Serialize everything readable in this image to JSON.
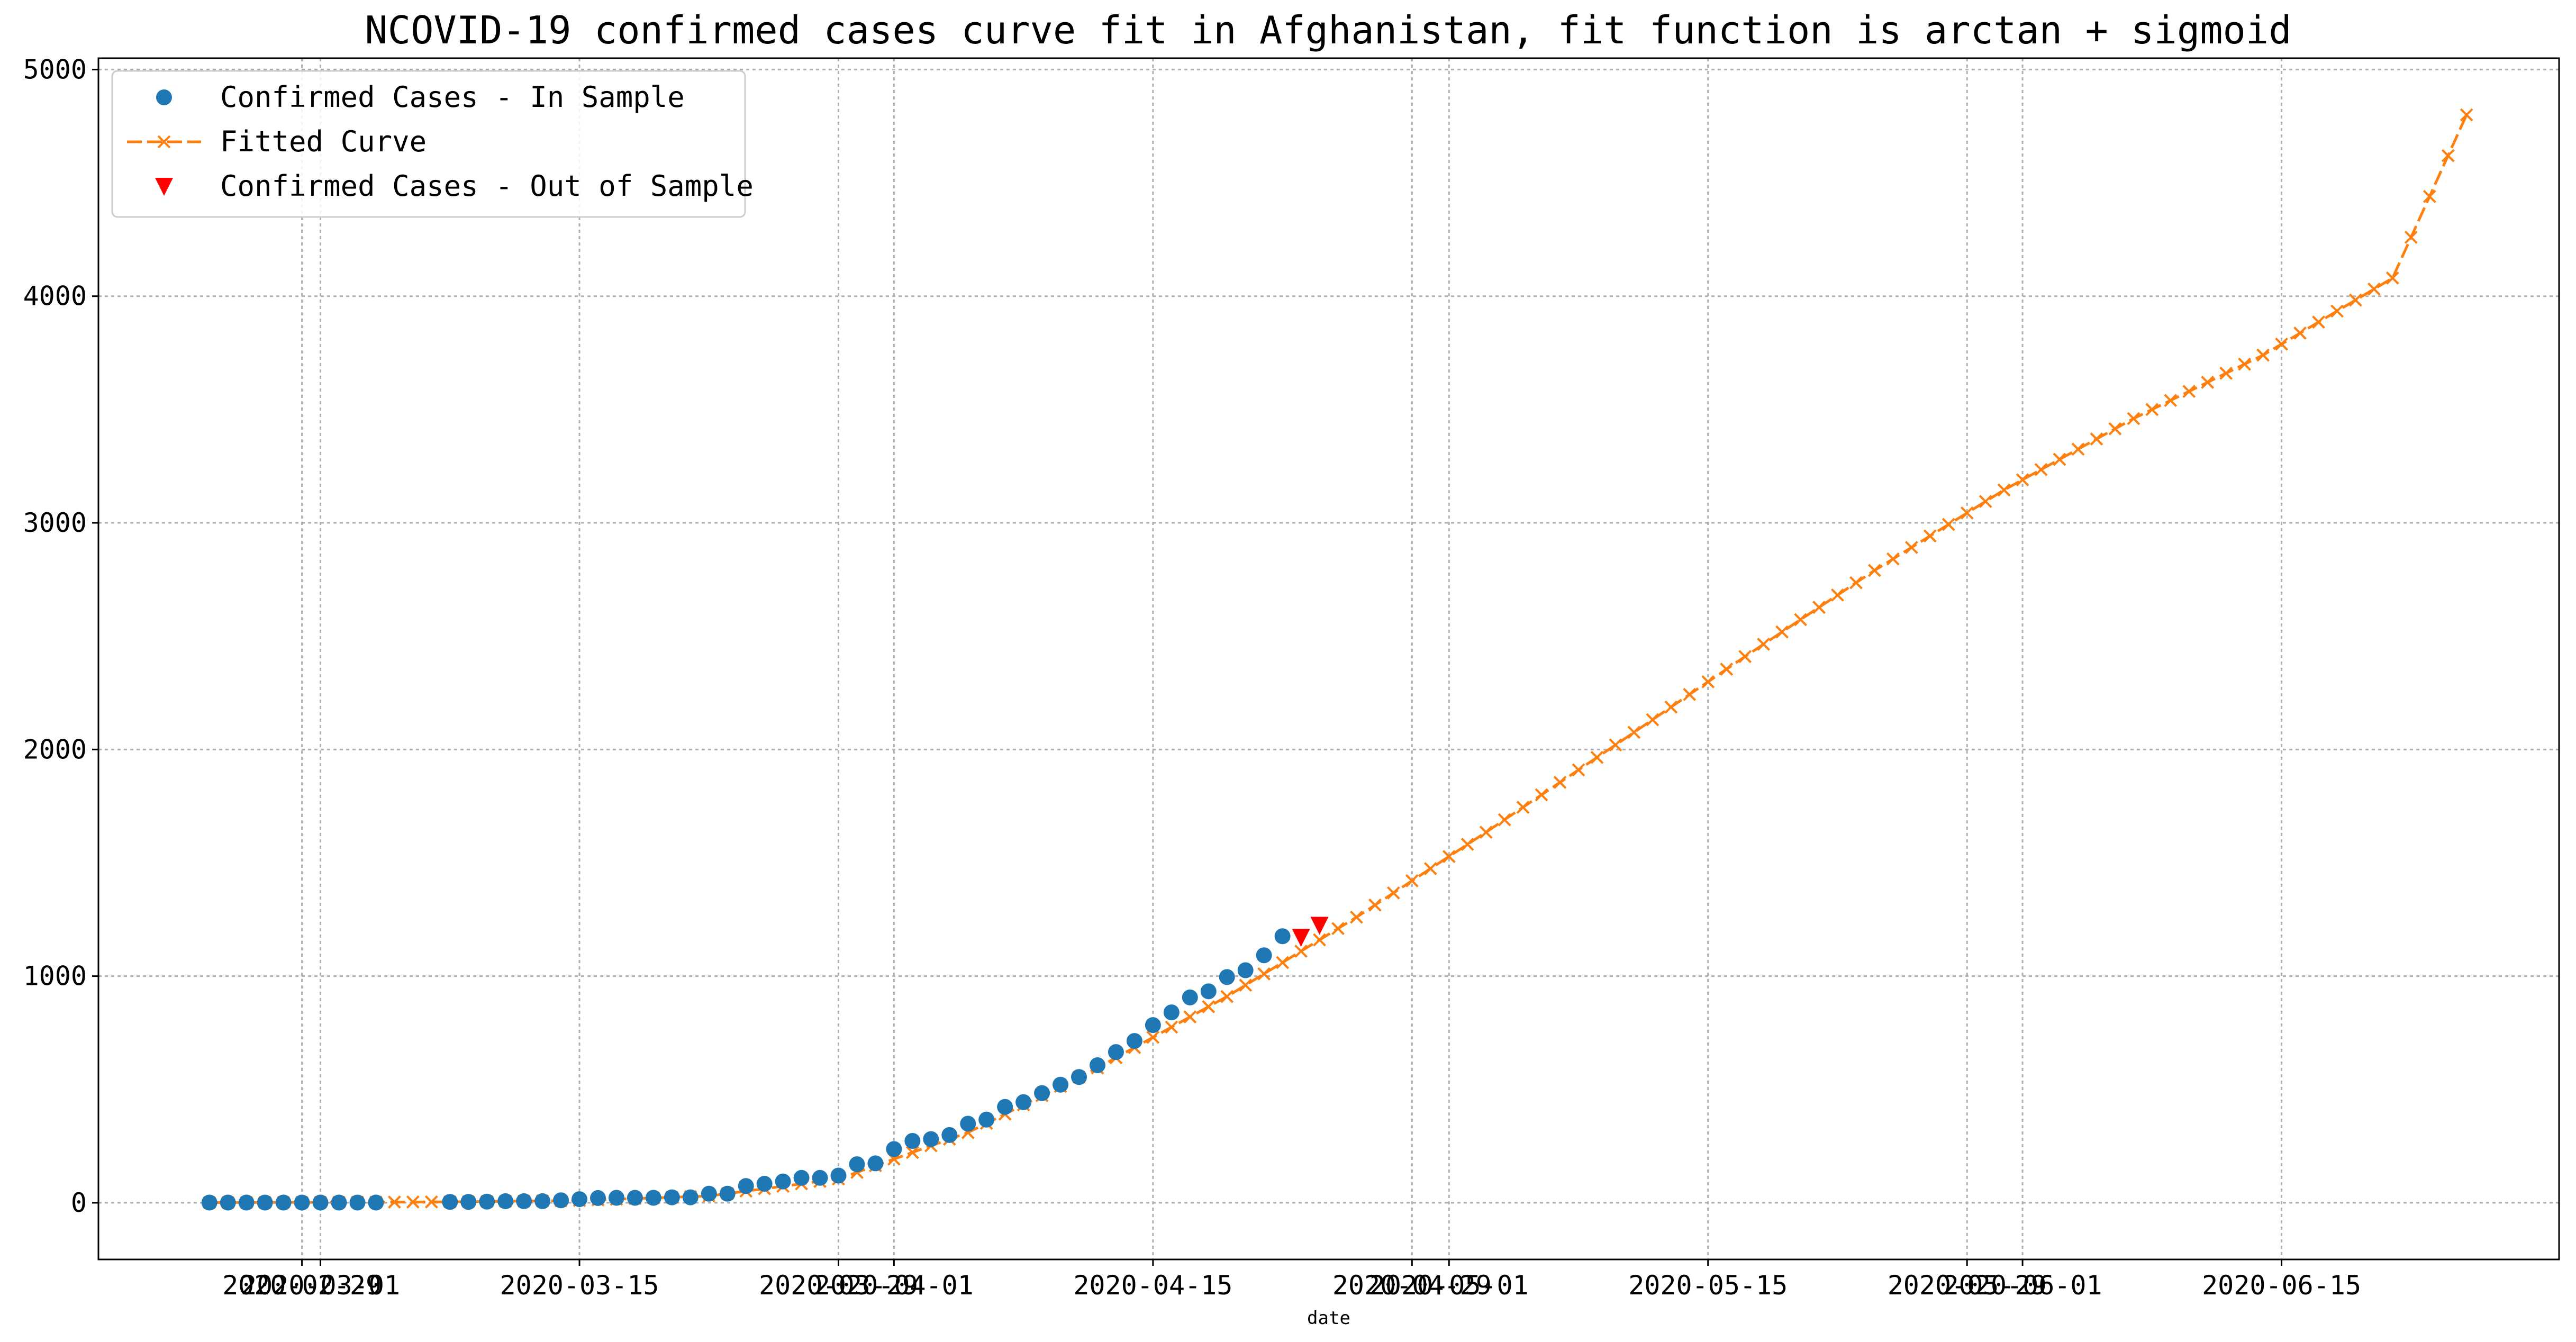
{
  "chart_data": {
    "type": "line",
    "title": "NCOVID-19 confirmed cases curve fit in Afghanistan, fit function is arctan + sigmoid",
    "xlabel": "date",
    "ylabel": "",
    "xlim": [
      "2020-02-18",
      "2020-06-30"
    ],
    "ylim": [
      -250,
      5050
    ],
    "grid": true,
    "legend_position": "upper-left",
    "x_ticks": [
      {
        "date": "2020-02-29",
        "label": "2020-02-29"
      },
      {
        "date": "2020-03-01",
        "label": "2020-03-01"
      },
      {
        "date": "2020-03-15",
        "label": "2020-03-15"
      },
      {
        "date": "2020-03-29",
        "label": "2020-03-29"
      },
      {
        "date": "2020-04-01",
        "label": "2020-04-01"
      },
      {
        "date": "2020-04-15",
        "label": "2020-04-15"
      },
      {
        "date": "2020-04-29",
        "label": "2020-04-29"
      },
      {
        "date": "2020-05-01",
        "label": "2020-05-01"
      },
      {
        "date": "2020-05-15",
        "label": "2020-05-15"
      },
      {
        "date": "2020-05-29",
        "label": "2020-05-29"
      },
      {
        "date": "2020-06-01",
        "label": "2020-06-01"
      },
      {
        "date": "2020-06-15",
        "label": "2020-06-15"
      }
    ],
    "y_ticks": [
      0,
      1000,
      2000,
      3000,
      4000,
      5000
    ],
    "series": [
      {
        "name": "Confirmed Cases - In Sample",
        "marker": "circle",
        "color": "#1f77b4",
        "x": [
          "2020-02-24",
          "2020-02-25",
          "2020-02-26",
          "2020-02-27",
          "2020-02-28",
          "2020-02-29",
          "2020-03-01",
          "2020-03-02",
          "2020-03-03",
          "2020-03-04",
          "2020-03-08",
          "2020-03-09",
          "2020-03-10",
          "2020-03-11",
          "2020-03-12",
          "2020-03-13",
          "2020-03-14",
          "2020-03-15",
          "2020-03-16",
          "2020-03-17",
          "2020-03-18",
          "2020-03-19",
          "2020-03-20",
          "2020-03-21",
          "2020-03-22",
          "2020-03-23",
          "2020-03-24",
          "2020-03-25",
          "2020-03-26",
          "2020-03-27",
          "2020-03-28",
          "2020-03-29",
          "2020-03-30",
          "2020-03-31",
          "2020-04-01",
          "2020-04-02",
          "2020-04-03",
          "2020-04-04",
          "2020-04-05",
          "2020-04-06",
          "2020-04-07",
          "2020-04-08",
          "2020-04-09",
          "2020-04-10",
          "2020-04-11",
          "2020-04-12",
          "2020-04-13",
          "2020-04-14",
          "2020-04-15",
          "2020-04-16",
          "2020-04-17",
          "2020-04-18",
          "2020-04-19",
          "2020-04-20",
          "2020-04-21",
          "2020-04-22"
        ],
        "values": [
          1,
          1,
          1,
          1,
          1,
          1,
          1,
          1,
          1,
          1,
          4,
          4,
          5,
          7,
          7,
          7,
          11,
          16,
          21,
          22,
          22,
          22,
          24,
          24,
          40,
          40,
          74,
          84,
          94,
          110,
          110,
          120,
          170,
          174,
          237,
          273,
          281,
          299,
          349,
          367,
          423,
          444,
          484,
          521,
          555,
          607,
          665,
          714,
          784,
          840,
          906,
          933,
          996,
          1026,
          1092,
          1176
        ]
      },
      {
        "name": "Fitted Curve",
        "marker": "x",
        "line": "dashed",
        "color": "#ff7f0e",
        "x": [
          "2020-02-24",
          "2020-03-01",
          "2020-03-08",
          "2020-03-15",
          "2020-03-22",
          "2020-03-29",
          "2020-04-05",
          "2020-04-12",
          "2020-04-19",
          "2020-04-26",
          "2020-05-03",
          "2020-05-10",
          "2020-05-17",
          "2020-05-24",
          "2020-05-31",
          "2020-06-07",
          "2020-06-14",
          "2020-06-21",
          "2020-06-25"
        ],
        "values": [
          1,
          2,
          4,
          10,
          30,
          105,
          310,
          595,
          910,
          1260,
          1635,
          2020,
          2410,
          2790,
          3145,
          3460,
          3740,
          4080,
          4800
        ]
      },
      {
        "name": "Confirmed Cases - Out of Sample",
        "marker": "triangle-down",
        "color": "#ff0000",
        "x": [
          "2020-04-23",
          "2020-04-24"
        ],
        "values": [
          1173,
          1226
        ]
      }
    ]
  }
}
